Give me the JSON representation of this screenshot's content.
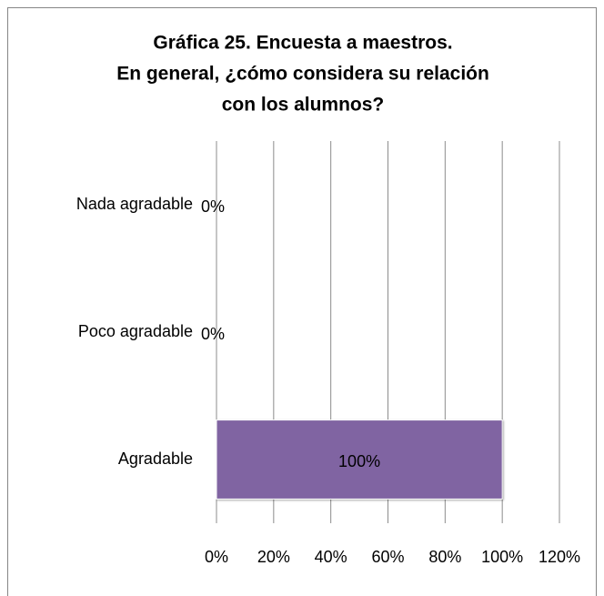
{
  "chart_data": {
    "type": "barh",
    "title": [
      "Gráfica 25. Encuesta a maestros.",
      "En general, ¿cómo considera su relación",
      "con los alumnos?"
    ],
    "categories": [
      "Nada agradable",
      "Poco agradable",
      "Agradable"
    ],
    "values": [
      0,
      0,
      100
    ],
    "value_labels": [
      "0%",
      "0%",
      "100%"
    ],
    "color": "#8064a2",
    "xlim": [
      0,
      120
    ],
    "xticks": [
      {
        "value": 0,
        "label": "0%"
      },
      {
        "value": 20,
        "label": "20%"
      },
      {
        "value": 40,
        "label": "40%"
      },
      {
        "value": 60,
        "label": "60%"
      },
      {
        "value": 80,
        "label": "80%"
      },
      {
        "value": 100,
        "label": "100%"
      },
      {
        "value": 120,
        "label": "120%"
      }
    ],
    "grid": true
  }
}
